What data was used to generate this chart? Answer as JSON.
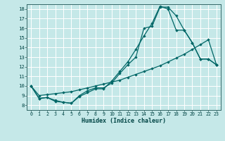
{
  "bg_color": "#c5e8e8",
  "grid_color": "#ffffff",
  "line_color": "#006666",
  "xlim": [
    -0.5,
    23.5
  ],
  "ylim": [
    7.5,
    18.5
  ],
  "xtick_vals": [
    0,
    1,
    2,
    3,
    4,
    5,
    6,
    7,
    8,
    9,
    10,
    11,
    12,
    13,
    14,
    15,
    16,
    17,
    18,
    19,
    20,
    21,
    22,
    23
  ],
  "ytick_vals": [
    8,
    9,
    10,
    11,
    12,
    13,
    14,
    15,
    16,
    17,
    18
  ],
  "xlabel": "Humidex (Indice chaleur)",
  "line1_x": [
    0,
    1,
    2,
    3,
    4,
    5,
    6,
    7,
    8,
    9,
    10,
    11,
    12,
    13,
    14,
    15,
    16,
    17,
    18,
    19,
    20,
    21,
    22,
    23
  ],
  "line1_y": [
    10.0,
    8.7,
    8.8,
    8.5,
    8.3,
    8.2,
    9.0,
    9.5,
    9.8,
    9.8,
    10.3,
    11.3,
    12.2,
    13.0,
    16.0,
    16.2,
    18.2,
    18.2,
    17.3,
    15.8,
    14.5,
    12.8,
    12.8,
    12.2
  ],
  "line2_x": [
    0,
    1,
    2,
    3,
    4,
    5,
    6,
    7,
    8,
    9,
    10,
    11,
    12,
    13,
    14,
    15,
    16,
    17,
    18,
    19,
    20,
    21,
    22,
    23
  ],
  "line2_y": [
    10.0,
    8.7,
    8.8,
    8.4,
    8.3,
    8.2,
    8.9,
    9.3,
    9.7,
    9.7,
    10.5,
    11.5,
    12.5,
    13.8,
    15.2,
    16.5,
    18.3,
    18.0,
    15.8,
    15.8,
    14.5,
    12.8,
    12.8,
    12.2
  ],
  "line3_x": [
    0,
    1,
    2,
    3,
    4,
    5,
    6,
    7,
    8,
    9,
    10,
    11,
    12,
    13,
    14,
    15,
    16,
    17,
    18,
    19,
    20,
    21,
    22,
    23
  ],
  "line3_y": [
    10.0,
    9.0,
    9.1,
    9.2,
    9.3,
    9.4,
    9.6,
    9.8,
    10.0,
    10.2,
    10.4,
    10.6,
    10.9,
    11.2,
    11.5,
    11.8,
    12.1,
    12.5,
    12.9,
    13.3,
    13.8,
    14.3,
    14.8,
    12.2
  ]
}
